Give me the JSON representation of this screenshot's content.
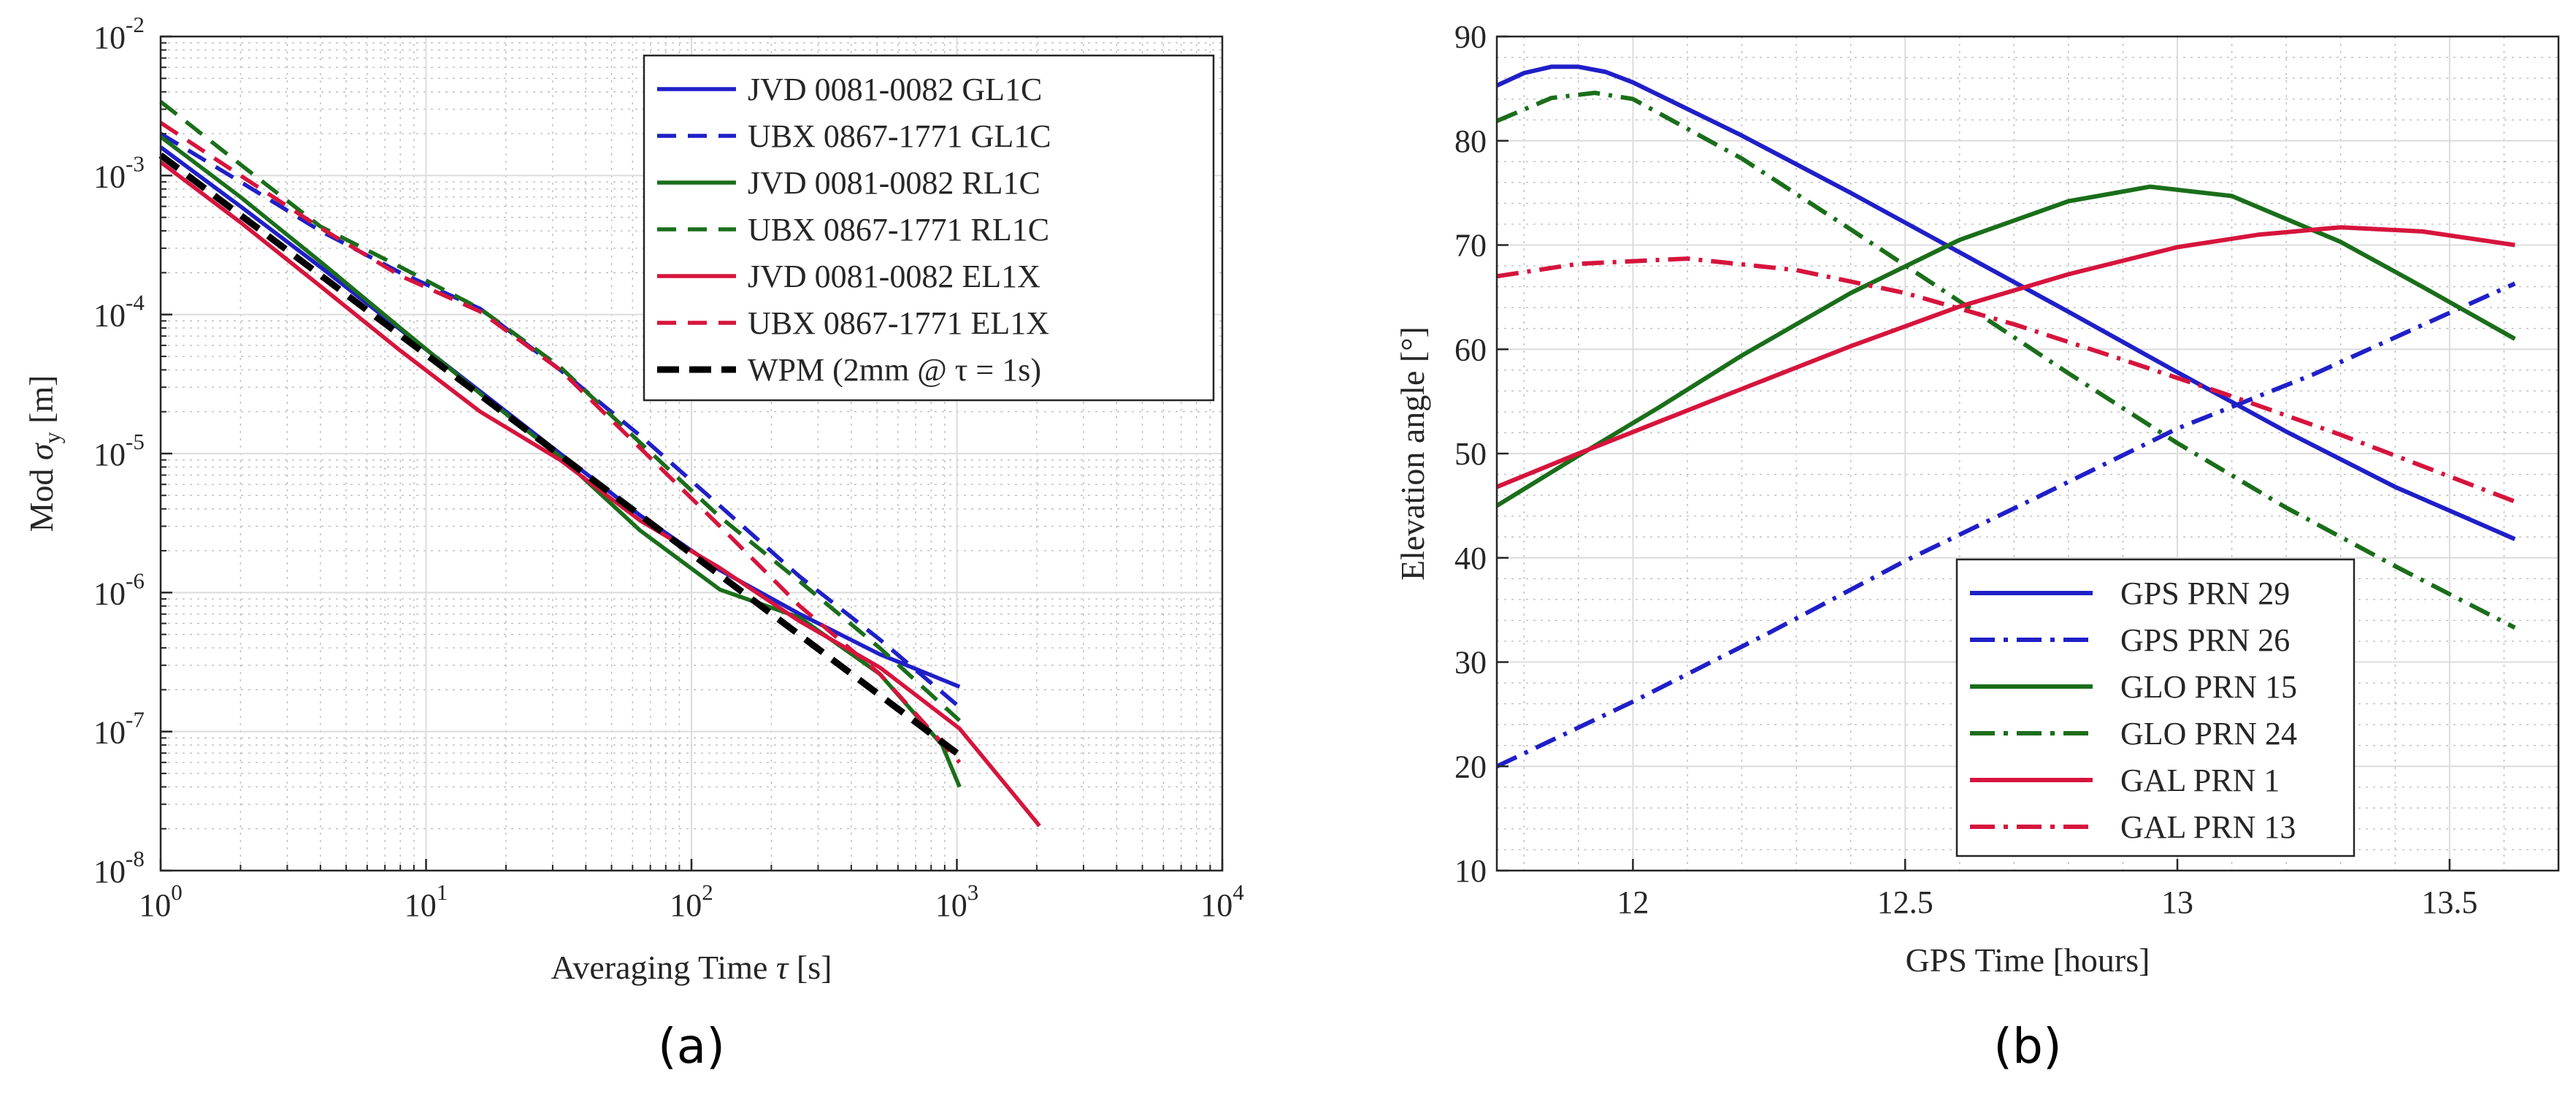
{
  "chart_data": [
    {
      "type": "line",
      "scale": "loglog",
      "panel_label": "(a)",
      "xlabel_text": "Averaging Time",
      "xlabel_symbol": "τ",
      "xlabel_unit": "[s]",
      "ylabel_text": "Mod",
      "ylabel_symbol": "σ",
      "ylabel_subscript": "y",
      "ylabel_unit": "[m]",
      "xlim_exp": [
        0,
        4
      ],
      "ylim_exp": [
        -8,
        -2
      ],
      "xtick_exps": [
        0,
        1,
        2,
        3,
        4
      ],
      "ytick_exps": [
        -8,
        -7,
        -6,
        -5,
        -4,
        -3,
        -2
      ],
      "tick_base": "10",
      "grid": true,
      "legend_position": "top-right",
      "series": [
        {
          "name": "JVD 0081-0082 GL1C",
          "color": "#1f1fc8",
          "style": "solid",
          "x": [
            1,
            2,
            4,
            8,
            16,
            32,
            64,
            128,
            256,
            512,
            1024
          ],
          "y": [
            0.0016,
            0.0006,
            0.00022,
            7.8e-05,
            2.8e-05,
            1e-05,
            3.6e-06,
            1.45e-06,
            7e-07,
            3.6e-07,
            2.1e-07
          ]
        },
        {
          "name": "UBX 0867-1771 GL1C",
          "color": "#1f1fc8",
          "style": "dashed",
          "x": [
            1,
            2,
            4,
            8,
            16,
            32,
            64,
            128,
            256,
            512,
            1024
          ],
          "y": [
            0.002,
            0.0009,
            0.0004,
            0.0002,
            0.00011,
            4e-05,
            1.35e-05,
            4.2e-06,
            1.3e-06,
            4.6e-07,
            1.5e-07
          ]
        },
        {
          "name": "JVD 0081-0082 RL1C",
          "color": "#1a6e1a",
          "style": "solid",
          "x": [
            1,
            2,
            4,
            8,
            16,
            32,
            64,
            128,
            256,
            512,
            880,
            1024
          ],
          "y": [
            0.0019,
            0.0007,
            0.00024,
            8e-05,
            2.7e-05,
            9.5e-06,
            2.8e-06,
            1.05e-06,
            6.6e-07,
            2.6e-07,
            8e-08,
            4e-08
          ]
        },
        {
          "name": "UBX 0867-1771 RL1C",
          "color": "#1a6e1a",
          "style": "dashed",
          "x": [
            1,
            2,
            4,
            8,
            16,
            32,
            64,
            128,
            256,
            512,
            1024
          ],
          "y": [
            0.0034,
            0.0012,
            0.00043,
            0.00022,
            0.00011,
            4.2e-05,
            1.2e-05,
            3.5e-06,
            1.2e-06,
            4e-07,
            1.2e-07
          ]
        },
        {
          "name": "JVD 0081-0082 EL1X",
          "color": "#d6143c",
          "style": "solid",
          "x": [
            1,
            2,
            4,
            8,
            16,
            32,
            64,
            128,
            256,
            512,
            1024,
            2048
          ],
          "y": [
            0.00125,
            0.00046,
            0.00016,
            5.5e-05,
            2e-05,
            9e-06,
            3.3e-06,
            1.5e-06,
            6.2e-07,
            2.9e-07,
            1.05e-07,
            2.1e-08
          ]
        },
        {
          "name": "UBX 0867-1771 EL1X",
          "color": "#d6143c",
          "style": "dashed",
          "x": [
            1,
            2,
            4,
            8,
            16,
            32,
            64,
            128,
            256,
            512,
            1024
          ],
          "y": [
            0.0024,
            0.001,
            0.00042,
            0.00019,
            0.000105,
            4e-05,
            1.1e-05,
            3e-06,
            8e-07,
            2.6e-07,
            6e-08
          ]
        },
        {
          "name": "WPM (2mm @ τ = 1s)",
          "color": "#000000",
          "style": "dashed-bold",
          "x": [
            1,
            1000
          ],
          "y": [
            0.0014,
            7e-08
          ]
        }
      ]
    },
    {
      "type": "line",
      "scale": "linear",
      "panel_label": "(b)",
      "xlabel": "GPS Time [hours]",
      "ylabel": "Elevation angle [°]",
      "xlim": [
        11.75,
        13.7
      ],
      "ylim": [
        10,
        90
      ],
      "xticks": [
        12,
        12.5,
        13,
        13.5
      ],
      "yticks": [
        10,
        20,
        30,
        40,
        50,
        60,
        70,
        80,
        90
      ],
      "grid": true,
      "legend_position": "bottom-center",
      "series": [
        {
          "name": "GPS PRN 29",
          "color": "#1f1fc8",
          "style": "solid",
          "x": [
            11.75,
            11.8,
            11.85,
            11.9,
            11.95,
            12.0,
            12.2,
            12.4,
            12.6,
            12.8,
            13.0,
            13.2,
            13.4,
            13.62
          ],
          "y": [
            85.3,
            86.5,
            87.1,
            87.1,
            86.6,
            85.6,
            80.5,
            75.0,
            69.3,
            63.6,
            57.8,
            52.1,
            46.8,
            41.8
          ]
        },
        {
          "name": "GPS PRN 26",
          "color": "#1f1fc8",
          "style": "dashdot",
          "x": [
            11.75,
            12.0,
            12.25,
            12.5,
            12.75,
            13.0,
            13.25,
            13.5,
            13.62
          ],
          "y": [
            20.0,
            26.2,
            32.8,
            39.7,
            46.0,
            52.4,
            57.6,
            63.5,
            66.3
          ]
        },
        {
          "name": "GLO PRN 15",
          "color": "#1a6e1a",
          "style": "solid",
          "x": [
            11.75,
            11.9,
            12.05,
            12.2,
            12.4,
            12.6,
            12.8,
            12.95,
            13.1,
            13.3,
            13.45,
            13.62
          ],
          "y": [
            45.0,
            49.8,
            54.5,
            59.4,
            65.4,
            70.5,
            74.2,
            75.6,
            74.7,
            70.3,
            66.0,
            61.0
          ]
        },
        {
          "name": "GLO PRN 24",
          "color": "#1a6e1a",
          "style": "dashdot",
          "x": [
            11.75,
            11.85,
            11.93,
            12.0,
            12.2,
            12.4,
            12.6,
            12.8,
            13.0,
            13.2,
            13.4,
            13.62
          ],
          "y": [
            81.9,
            84.1,
            84.6,
            84.0,
            78.3,
            71.5,
            64.6,
            57.7,
            51.0,
            44.8,
            39.2,
            33.3
          ]
        },
        {
          "name": "GAL PRN 1",
          "color": "#d6143c",
          "style": "solid",
          "x": [
            11.75,
            11.9,
            12.05,
            12.2,
            12.4,
            12.6,
            12.8,
            13.0,
            13.15,
            13.3,
            13.45,
            13.62
          ],
          "y": [
            46.8,
            50.0,
            53.1,
            56.2,
            60.3,
            64.1,
            67.2,
            69.8,
            71.0,
            71.7,
            71.3,
            70.0
          ]
        },
        {
          "name": "GAL PRN 13",
          "color": "#d6143c",
          "style": "dashdot",
          "x": [
            11.75,
            11.9,
            12.1,
            12.3,
            12.5,
            12.7,
            12.9,
            13.1,
            13.3,
            13.5,
            13.62
          ],
          "y": [
            67.0,
            68.2,
            68.7,
            67.6,
            65.4,
            62.4,
            59.0,
            55.5,
            51.8,
            47.8,
            45.4
          ]
        }
      ]
    }
  ]
}
